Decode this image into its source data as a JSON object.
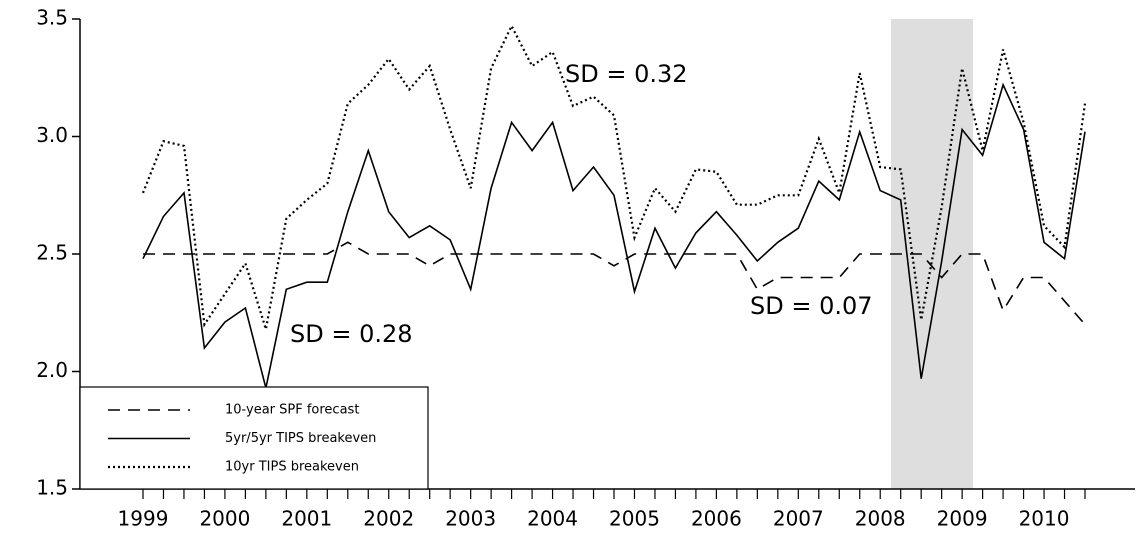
{
  "chart_data": {
    "type": "line",
    "categories": [
      "1999",
      null,
      null,
      null,
      "2000",
      null,
      null,
      null,
      "2001",
      null,
      null,
      null,
      "2002",
      null,
      null,
      null,
      "2003",
      null,
      null,
      null,
      "2004",
      null,
      null,
      null,
      "2005",
      null,
      null,
      null,
      "2006",
      null,
      null,
      null,
      "2007",
      null,
      null,
      null,
      "2008",
      null,
      null,
      null,
      "2009",
      null,
      null,
      null,
      "2010",
      null,
      null
    ],
    "series": [
      {
        "name": "10-year SPF forecast",
        "color": "#000000",
        "dash": "dashed",
        "values": [
          2.5,
          2.5,
          2.5,
          2.5,
          2.5,
          2.5,
          2.5,
          2.5,
          2.5,
          2.5,
          2.55,
          2.5,
          2.5,
          2.5,
          2.45,
          2.5,
          2.5,
          2.5,
          2.5,
          2.5,
          2.5,
          2.5,
          2.5,
          2.45,
          2.5,
          2.5,
          2.5,
          2.5,
          2.5,
          2.5,
          2.35,
          2.4,
          2.4,
          2.4,
          2.4,
          2.5,
          2.5,
          2.5,
          2.5,
          2.4,
          2.5,
          2.5,
          2.26,
          2.4,
          2.4,
          2.3,
          2.2
        ]
      },
      {
        "name": "5yr/5yr TIPS breakeven",
        "color": "#000000",
        "dash": "solid",
        "values": [
          2.48,
          2.66,
          2.76,
          2.1,
          2.21,
          2.27,
          1.93,
          2.35,
          2.38,
          2.38,
          2.68,
          2.94,
          2.68,
          2.57,
          2.62,
          2.56,
          2.35,
          2.78,
          3.06,
          2.94,
          3.06,
          2.77,
          2.87,
          2.75,
          2.34,
          2.61,
          2.44,
          2.59,
          2.68,
          2.58,
          2.47,
          2.55,
          2.61,
          2.81,
          2.73,
          3.02,
          2.77,
          2.73,
          1.97,
          2.47,
          3.03,
          2.92,
          3.22,
          3.03,
          2.55,
          2.48,
          3.02
        ]
      },
      {
        "name": "10yr TIPS breakeven",
        "color": "#000000",
        "dash": "dotted",
        "values": [
          2.76,
          2.98,
          2.96,
          2.2,
          2.33,
          2.46,
          2.18,
          2.65,
          2.73,
          2.8,
          3.14,
          3.22,
          3.33,
          3.2,
          3.3,
          3.03,
          2.78,
          3.29,
          3.47,
          3.3,
          3.36,
          3.13,
          3.17,
          3.09,
          2.57,
          2.78,
          2.68,
          2.86,
          2.85,
          2.71,
          2.71,
          2.75,
          2.75,
          2.99,
          2.76,
          3.27,
          2.87,
          2.86,
          2.22,
          2.7,
          3.29,
          2.94,
          3.37,
          3.06,
          2.62,
          2.53,
          3.14
        ]
      }
    ],
    "annotations": [
      "SD = 0.32",
      "SD = 0.28",
      "SD = 0.07"
    ],
    "ylim": [
      1.5,
      3.5
    ],
    "yticks": [
      1.5,
      {
        "value": 2,
        "label": "2.0"
      },
      2.5,
      {
        "value": 3,
        "label": "3.0"
      },
      3.5
    ],
    "legend": "lower left"
  }
}
